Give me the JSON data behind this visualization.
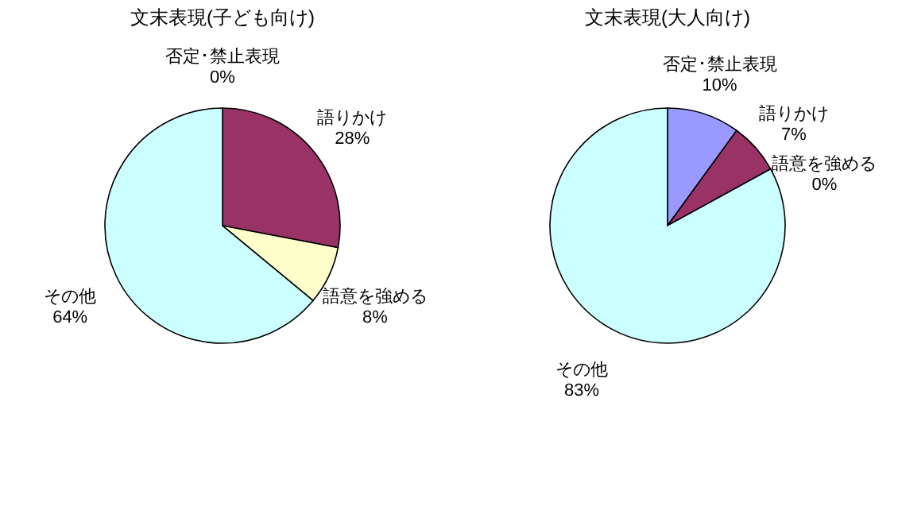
{
  "chart_data": [
    {
      "type": "pie",
      "title": "文末表現(子ども向け)",
      "categories": [
        "否定･禁止表現",
        "語りかけ",
        "語意を強める",
        "その他"
      ],
      "values": [
        0,
        28,
        8,
        64
      ],
      "colors": [
        "#9999ff",
        "#993366",
        "#ffffcc",
        "#ccffff"
      ],
      "value_labels": [
        "0%",
        "28%",
        "8%",
        "64%"
      ],
      "legend": false
    },
    {
      "type": "pie",
      "title": "文末表現(大人向け)",
      "categories": [
        "否定･禁止表現",
        "語りかけ",
        "語意を強める",
        "その他"
      ],
      "values": [
        10,
        7,
        0,
        83
      ],
      "colors": [
        "#9999ff",
        "#993366",
        "#ffffcc",
        "#ccffff"
      ],
      "value_labels": [
        "10%",
        "7%",
        "0%",
        "83%"
      ],
      "legend": false
    }
  ]
}
